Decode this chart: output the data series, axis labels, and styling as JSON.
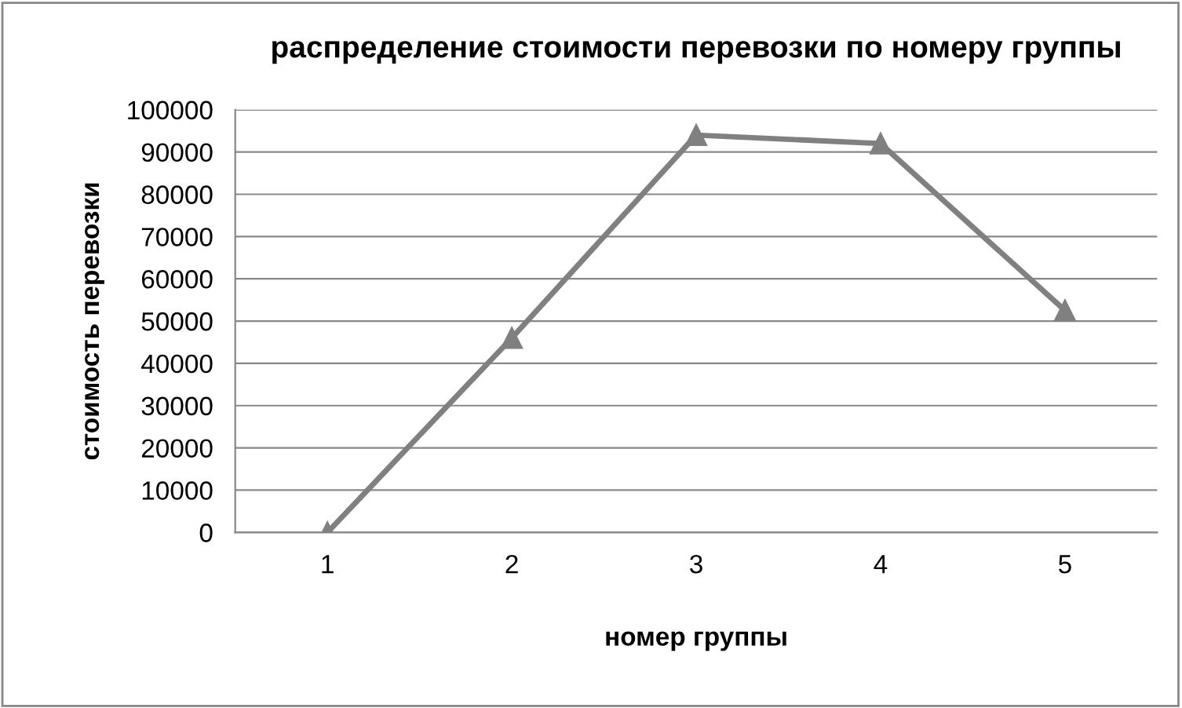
{
  "chart_data": {
    "type": "line",
    "title": "распределение стоимости перевозки по номеру группы",
    "xlabel": "номер группы",
    "ylabel": "стоимость перевозки",
    "categories": [
      "1",
      "2",
      "3",
      "4",
      "5"
    ],
    "series": [
      {
        "color": "#808080",
        "values": [
          0,
          46000,
          94000,
          92000,
          52500
        ]
      }
    ],
    "ylim": [
      0,
      100000
    ],
    "yticks": [
      0,
      10000,
      20000,
      30000,
      40000,
      50000,
      60000,
      70000,
      80000,
      90000,
      100000
    ],
    "grid": "y",
    "legend": false,
    "marker": "triangle",
    "line_style": "solid"
  }
}
